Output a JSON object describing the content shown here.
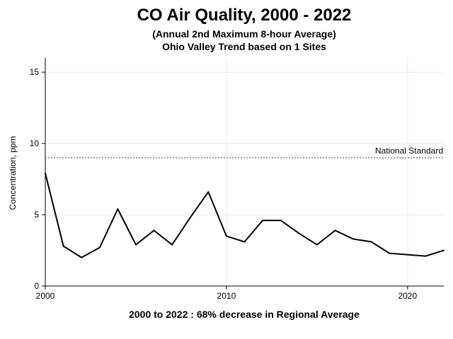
{
  "chart_data": {
    "type": "line",
    "title": "CO Air Quality, 2000 - 2022",
    "subtitle_1": "(Annual 2nd Maximum 8-hour Average)",
    "subtitle_2": "Ohio Valley Trend based on 1 Sites",
    "ylabel": "Concentration, ppm",
    "footer": "2000 to 2022 :  68% decrease in Regional Average",
    "x": [
      2000,
      2001,
      2002,
      2003,
      2004,
      2005,
      2006,
      2007,
      2008,
      2009,
      2010,
      2011,
      2012,
      2013,
      2014,
      2015,
      2016,
      2017,
      2018,
      2019,
      2020,
      2021,
      2022
    ],
    "y": [
      7.9,
      2.8,
      2.0,
      2.7,
      5.4,
      2.9,
      3.9,
      2.9,
      4.8,
      6.6,
      3.5,
      3.1,
      4.6,
      4.6,
      3.7,
      2.9,
      3.9,
      3.3,
      3.1,
      2.3,
      2.2,
      2.1,
      2.5
    ],
    "xlim": [
      2000,
      2022
    ],
    "ylim": [
      0,
      16
    ],
    "xticks": [
      2000,
      2010,
      2020
    ],
    "yticks": [
      0,
      5,
      10,
      15
    ],
    "grid": true,
    "reference_line": {
      "value": 9,
      "label": "National Standard"
    },
    "line_color": "#000000",
    "reference_color": "#999999"
  }
}
